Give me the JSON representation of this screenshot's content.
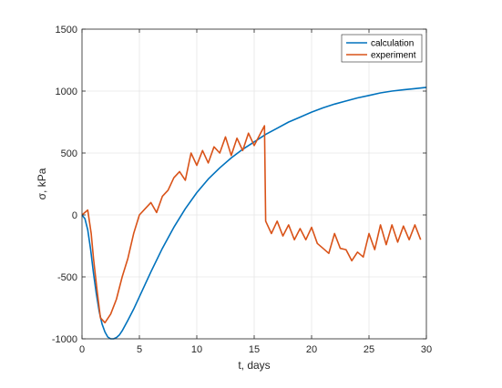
{
  "chart_data": {
    "type": "line",
    "title": "",
    "xlabel": "t, days",
    "ylabel": "σ, kPa",
    "xlim": [
      0,
      30
    ],
    "ylim": [
      -1000,
      1500
    ],
    "xticks": [
      0,
      5,
      10,
      15,
      20,
      25,
      30
    ],
    "xtick_labels": [
      "0",
      "5",
      "10",
      "15",
      "20",
      "25",
      "30"
    ],
    "yticks": [
      -1000,
      -500,
      0,
      500,
      1000,
      1500
    ],
    "ytick_labels": [
      "-1000",
      "-500",
      "0",
      "500",
      "1000",
      "1500"
    ],
    "grid": true,
    "legend_position": "top-right",
    "series": [
      {
        "name": "calculation",
        "color": "#0072BD",
        "x": [
          0,
          0.25,
          0.5,
          0.75,
          1,
          1.25,
          1.5,
          1.75,
          2,
          2.25,
          2.5,
          2.75,
          3,
          3.25,
          3.5,
          4,
          4.5,
          5,
          5.5,
          6,
          7,
          8,
          9,
          10,
          11,
          12,
          13,
          14,
          15,
          16,
          17,
          18,
          19,
          20,
          21,
          22,
          23,
          24,
          25,
          26,
          27,
          28,
          29,
          30
        ],
        "y": [
          0,
          -30,
          -120,
          -280,
          -470,
          -640,
          -780,
          -880,
          -945,
          -985,
          -1000,
          -1000,
          -990,
          -970,
          -935,
          -850,
          -760,
          -660,
          -560,
          -460,
          -270,
          -100,
          50,
          180,
          290,
          380,
          460,
          530,
          590,
          650,
          700,
          750,
          790,
          830,
          865,
          895,
          920,
          945,
          965,
          985,
          1000,
          1010,
          1020,
          1030
        ]
      },
      {
        "name": "experiment",
        "color": "#D95319",
        "x": [
          0,
          0.5,
          0.8,
          1.0,
          1.3,
          1.6,
          2.0,
          2.5,
          3.0,
          3.5,
          4.0,
          4.5,
          5.0,
          5.5,
          6.0,
          6.5,
          7.0,
          7.5,
          8.0,
          8.5,
          9.0,
          9.5,
          10.0,
          10.5,
          11.0,
          11.5,
          12.0,
          12.5,
          13.0,
          13.5,
          14.0,
          14.5,
          15.0,
          15.5,
          15.9,
          16.0,
          16.5,
          17.0,
          17.5,
          18.0,
          18.5,
          19.0,
          19.5,
          20.0,
          20.5,
          21.0,
          21.5,
          22.0,
          22.5,
          23.0,
          23.5,
          24.0,
          24.5,
          25.0,
          25.5,
          26.0,
          26.5,
          27.0,
          27.5,
          28.0,
          28.5,
          29.0,
          29.5
        ],
        "y": [
          0,
          40,
          -150,
          -350,
          -600,
          -830,
          -870,
          -800,
          -680,
          -500,
          -350,
          -150,
          0,
          50,
          100,
          20,
          150,
          200,
          300,
          350,
          280,
          500,
          400,
          520,
          420,
          550,
          500,
          630,
          480,
          620,
          520,
          660,
          560,
          650,
          720,
          -50,
          -150,
          -50,
          -170,
          -80,
          -200,
          -110,
          -200,
          -100,
          -230,
          -270,
          -310,
          -150,
          -270,
          -280,
          -370,
          -300,
          -340,
          -150,
          -280,
          -80,
          -240,
          -80,
          -220,
          -90,
          -200,
          -80,
          -200
        ]
      }
    ]
  }
}
